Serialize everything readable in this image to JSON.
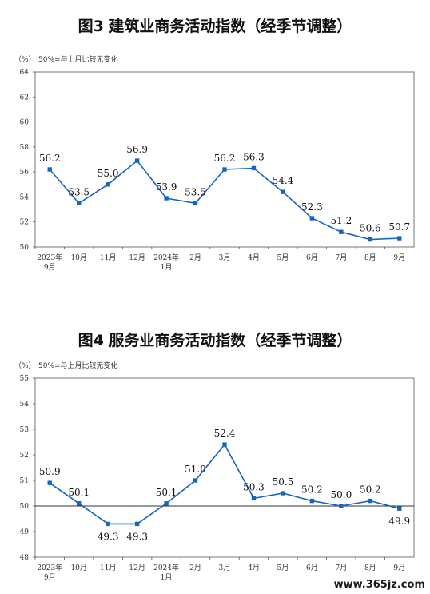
{
  "chart_data": [
    {
      "type": "line",
      "title": "图3  建筑业商务活动指数（经季节调整）",
      "unit_label": "（%）",
      "note": "50%=与上月比较无变化",
      "categories": [
        "2023年\n9月",
        "10月",
        "11月",
        "12月",
        "2024年\n1月",
        "2月",
        "3月",
        "4月",
        "5月",
        "6月",
        "7月",
        "8月",
        "9月"
      ],
      "values": [
        56.2,
        53.5,
        55.0,
        56.9,
        53.9,
        53.5,
        56.2,
        56.3,
        54.4,
        52.3,
        51.2,
        50.6,
        50.7
      ],
      "value_labels": [
        "56.2",
        "53.5",
        "55.0",
        "56.9",
        "53.9",
        "53.5",
        "56.2",
        "56.3",
        "54.4",
        "52.3",
        "51.2",
        "50.6",
        "50.7"
      ],
      "y_ticks": [
        "50",
        "52",
        "54",
        "56",
        "58",
        "60",
        "62",
        "64"
      ],
      "ylim": [
        50,
        64
      ],
      "color": "#1565c0"
    },
    {
      "type": "line",
      "title": "图4  服务业商务活动指数（经季节调整）",
      "unit_label": "（%）",
      "note": "50%=与上月比较无变化",
      "categories": [
        "2023年\n9月",
        "10月",
        "11月",
        "12月",
        "2024年\n1月",
        "2月",
        "3月",
        "4月",
        "5月",
        "6月",
        "7月",
        "8月",
        "9月"
      ],
      "values": [
        50.9,
        50.1,
        49.3,
        49.3,
        50.1,
        51.0,
        52.4,
        50.3,
        50.5,
        50.2,
        50.0,
        50.2,
        49.9
      ],
      "value_labels": [
        "50.9",
        "50.1",
        "49.3",
        "49.3",
        "50.1",
        "51.0",
        "52.4",
        "50.3",
        "50.5",
        "50.2",
        "50.0",
        "50.2",
        "49.9"
      ],
      "y_ticks": [
        "48",
        "49",
        "50",
        "51",
        "52",
        "53",
        "54",
        "55"
      ],
      "ylim": [
        48,
        55
      ],
      "reference_line": 50,
      "color": "#1565c0"
    }
  ],
  "watermark": "www.365jz.com"
}
